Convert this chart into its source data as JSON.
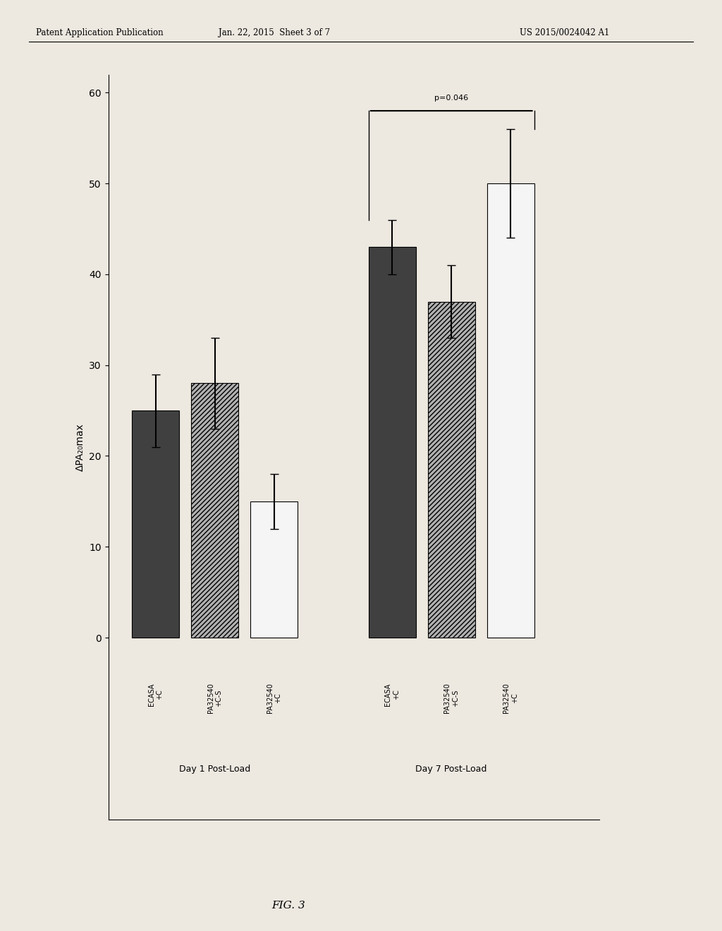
{
  "title": "",
  "ylabel": "ΔPA₂₀max",
  "xlim": [
    0,
    60
  ],
  "xticks": [
    0,
    10,
    20,
    30,
    40,
    50,
    60
  ],
  "groups": [
    "Day 1 Post-Load",
    "Day 7 Post-Load"
  ],
  "bar_labels": [
    "ECASA +C",
    "PA32540 +C-S",
    "PA32540 +C"
  ],
  "day1_values": [
    25,
    28,
    15
  ],
  "day1_errors": [
    4,
    5,
    3
  ],
  "day7_values": [
    43,
    37,
    50
  ],
  "day7_errors": [
    3,
    4,
    6
  ],
  "bar_colors": [
    "dark",
    "hatch",
    "white"
  ],
  "p_value_text": "p=0.046",
  "background_color": "#ffffff",
  "header_left": "Patent Application Publication",
  "header_mid": "Jan. 22, 2015  Sheet 3 of 7",
  "header_right": "US 2015/0024042 A1",
  "footer": "FIG. 3"
}
